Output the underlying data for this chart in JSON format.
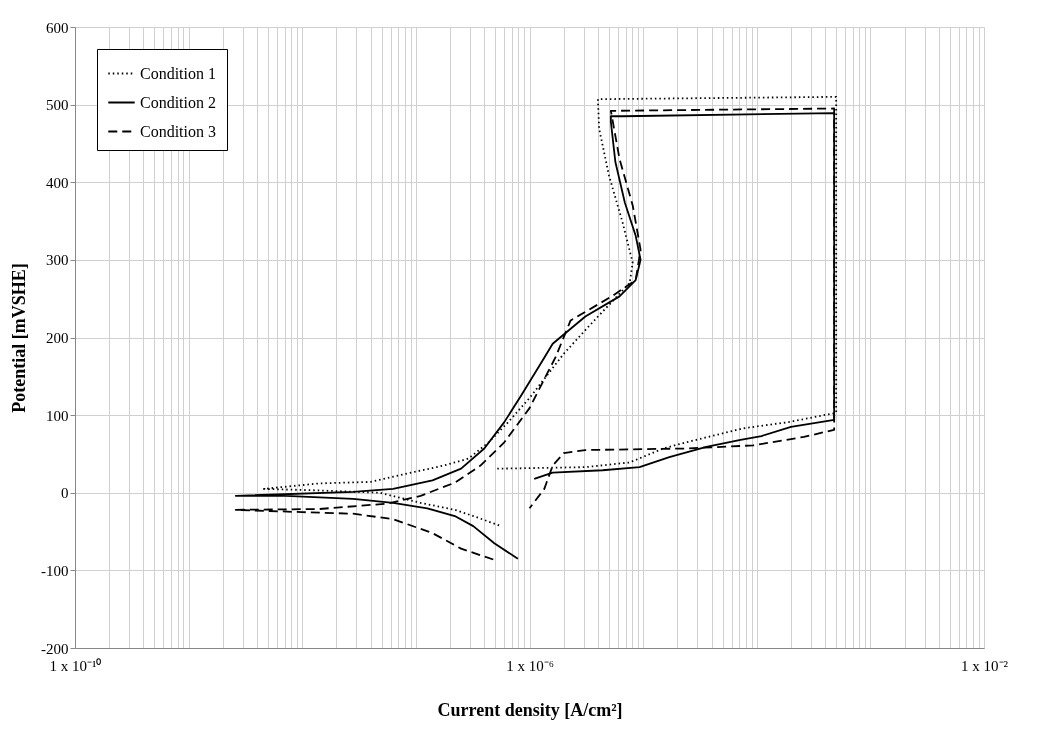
{
  "chart_data": {
    "type": "line",
    "xlabel": "Current density [A/cm²]",
    "ylabel": "Potential [mVSHE]",
    "log": "x",
    "grid": true,
    "legend": "top left",
    "xlim": [
      1e-10,
      0.01
    ],
    "ylim": [
      -200,
      600
    ],
    "yticks": [
      -200,
      -100,
      0,
      100,
      200,
      300,
      400,
      500,
      600
    ],
    "xticks": [
      {
        "value": 1e-10,
        "label": "1 x 10⁻¹⁰"
      },
      {
        "value": 2e-10,
        "label": null
      },
      {
        "value": 3e-10,
        "label": null
      },
      {
        "value": 4e-10,
        "label": null
      },
      {
        "value": 5e-10,
        "label": null
      },
      {
        "value": 6e-10,
        "label": null
      },
      {
        "value": 7e-10,
        "label": null
      },
      {
        "value": 8e-10,
        "label": null
      },
      {
        "value": 9e-10,
        "label": null
      },
      {
        "value": 1e-09,
        "label": null
      },
      {
        "value": 2e-09,
        "label": null
      },
      {
        "value": 3e-09,
        "label": null
      },
      {
        "value": 4e-09,
        "label": null
      },
      {
        "value": 5e-09,
        "label": null
      },
      {
        "value": 6e-09,
        "label": null
      },
      {
        "value": 7e-09,
        "label": null
      },
      {
        "value": 8e-09,
        "label": null
      },
      {
        "value": 9e-09,
        "label": null
      },
      {
        "value": 1e-08,
        "label": null
      },
      {
        "value": 2e-08,
        "label": null
      },
      {
        "value": 3e-08,
        "label": null
      },
      {
        "value": 4e-08,
        "label": null
      },
      {
        "value": 5e-08,
        "label": null
      },
      {
        "value": 6e-08,
        "label": null
      },
      {
        "value": 7e-08,
        "label": null
      },
      {
        "value": 8e-08,
        "label": null
      },
      {
        "value": 9e-08,
        "label": null
      },
      {
        "value": 1e-07,
        "label": null
      },
      {
        "value": 2e-07,
        "label": null
      },
      {
        "value": 3e-07,
        "label": null
      },
      {
        "value": 4e-07,
        "label": null
      },
      {
        "value": 5e-07,
        "label": null
      },
      {
        "value": 6e-07,
        "label": null
      },
      {
        "value": 7e-07,
        "label": null
      },
      {
        "value": 8e-07,
        "label": null
      },
      {
        "value": 9e-07,
        "label": null
      },
      {
        "value": 1e-06,
        "label": "1 x 10⁻⁶"
      },
      {
        "value": 2e-06,
        "label": null
      },
      {
        "value": 3e-06,
        "label": null
      },
      {
        "value": 4e-06,
        "label": null
      },
      {
        "value": 5e-06,
        "label": null
      },
      {
        "value": 6e-06,
        "label": null
      },
      {
        "value": 7e-06,
        "label": null
      },
      {
        "value": 8e-06,
        "label": null
      },
      {
        "value": 9e-06,
        "label": null
      },
      {
        "value": 1e-05,
        "label": null
      },
      {
        "value": 2e-05,
        "label": null
      },
      {
        "value": 3e-05,
        "label": null
      },
      {
        "value": 4e-05,
        "label": null
      },
      {
        "value": 5e-05,
        "label": null
      },
      {
        "value": 6e-05,
        "label": null
      },
      {
        "value": 7e-05,
        "label": null
      },
      {
        "value": 8e-05,
        "label": null
      },
      {
        "value": 9e-05,
        "label": null
      },
      {
        "value": 0.0001,
        "label": null
      },
      {
        "value": 0.0002,
        "label": null
      },
      {
        "value": 0.0003,
        "label": null
      },
      {
        "value": 0.0004,
        "label": null
      },
      {
        "value": 0.0005,
        "label": null
      },
      {
        "value": 0.0006,
        "label": null
      },
      {
        "value": 0.0007,
        "label": null
      },
      {
        "value": 0.0008,
        "label": null
      },
      {
        "value": 0.0009,
        "label": null
      },
      {
        "value": 0.001,
        "label": null
      },
      {
        "value": 0.002,
        "label": null
      },
      {
        "value": 0.003,
        "label": null
      },
      {
        "value": 0.004,
        "label": null
      },
      {
        "value": 0.005,
        "label": null
      },
      {
        "value": 0.006,
        "label": null
      },
      {
        "value": 0.007,
        "label": null
      },
      {
        "value": 0.008,
        "label": null
      },
      {
        "value": 0.009,
        "label": null
      },
      {
        "value": 0.01,
        "label": "1 x 10⁻²"
      }
    ],
    "series": [
      {
        "name": "Condition 1",
        "color": "#000000",
        "line_style": "dotted",
        "x": [
          5.4e-07,
          3.2e-07,
          2.2e-07,
          1.1e-07,
          4.8e-08,
          1.4e-08,
          4.6e-09,
          1.4e-08,
          4e-08,
          8.5e-08,
          1.75e-07,
          2.9e-07,
          4.3e-07,
          6.5e-07,
          1e-06,
          2e-06,
          3.5e-06,
          7.6e-06,
          8.1e-06,
          6.6e-06,
          5e-06,
          4.1e-06,
          4e-06,
          0.0005,
          0.0005,
          0.00019,
          7.6e-05,
          2.4e-05,
          1.5e-05,
          7.6e-06,
          3.1e-06,
          5.1e-07
        ],
        "values": [
          -42,
          -30,
          -22,
          -13,
          0,
          3,
          5,
          12,
          14,
          25,
          35,
          44,
          64,
          91,
          122,
          179,
          218,
          270,
          296,
          348,
          409,
          469,
          507,
          510,
          103,
          91,
          83,
          65,
          57,
          39,
          33,
          31
        ]
      },
      {
        "name": "Condition 2",
        "color": "#000000",
        "line_style": "solid",
        "x": [
          7.9e-07,
          4.9e-07,
          3.2e-07,
          2.2e-07,
          1.26e-07,
          6.3e-08,
          2.8e-08,
          7.2e-09,
          2.6e-09,
          2.8e-08,
          6.3e-08,
          1.4e-07,
          2.5e-07,
          4e-07,
          6e-07,
          8.5e-07,
          1.3e-06,
          1.6e-06,
          3.1e-06,
          6.2e-06,
          8.6e-06,
          9.5e-06,
          8.6e-06,
          6.9e-06,
          5.7e-06,
          5.2e-06,
          5.2e-06,
          6.6e-06,
          0.00048,
          0.00048,
          0.0002,
          0.00011,
          7.2e-05,
          3.6e-05,
          1.7e-05,
          9.3e-06,
          4.4e-06,
          1.6e-06,
          1.1e-06
        ],
        "values": [
          -85,
          -65,
          -43,
          -30,
          -20,
          -13,
          -8,
          -4,
          -4,
          1,
          5,
          16,
          31,
          57,
          91,
          126,
          170,
          192,
          227,
          253,
          274,
          300,
          331,
          374,
          426,
          478,
          485,
          485,
          489,
          94,
          85,
          73,
          68,
          59,
          46,
          33,
          29,
          26,
          18
        ]
      },
      {
        "name": "Condition 3",
        "color": "#000000",
        "line_style": "dashed",
        "x": [
          4.8e-07,
          2.5e-07,
          1.4e-07,
          6.3e-08,
          2.8e-08,
          1e-08,
          2.6e-09,
          1.4e-08,
          5.6e-08,
          1.1e-07,
          2.2e-07,
          3.7e-07,
          6e-07,
          1e-06,
          1.7e-06,
          2.3e-06,
          5.3e-06,
          8.6e-06,
          9.5e-06,
          8.1e-06,
          6.2e-06,
          5.2e-06,
          0.00048,
          0.00048,
          0.00026,
          9.3e-05,
          2.4e-05,
          3.1e-06,
          2e-06,
          1.6e-06,
          1.35e-06,
          1e-06
        ],
        "values": [
          -86,
          -72,
          -52,
          -34,
          -27,
          -25,
          -22,
          -21,
          -14,
          -4,
          13,
          35,
          65,
          109,
          175,
          222,
          253,
          274,
          313,
          370,
          430,
          492,
          495,
          81,
          72,
          61,
          57,
          55,
          51,
          35,
          5,
          -20
        ]
      }
    ]
  }
}
